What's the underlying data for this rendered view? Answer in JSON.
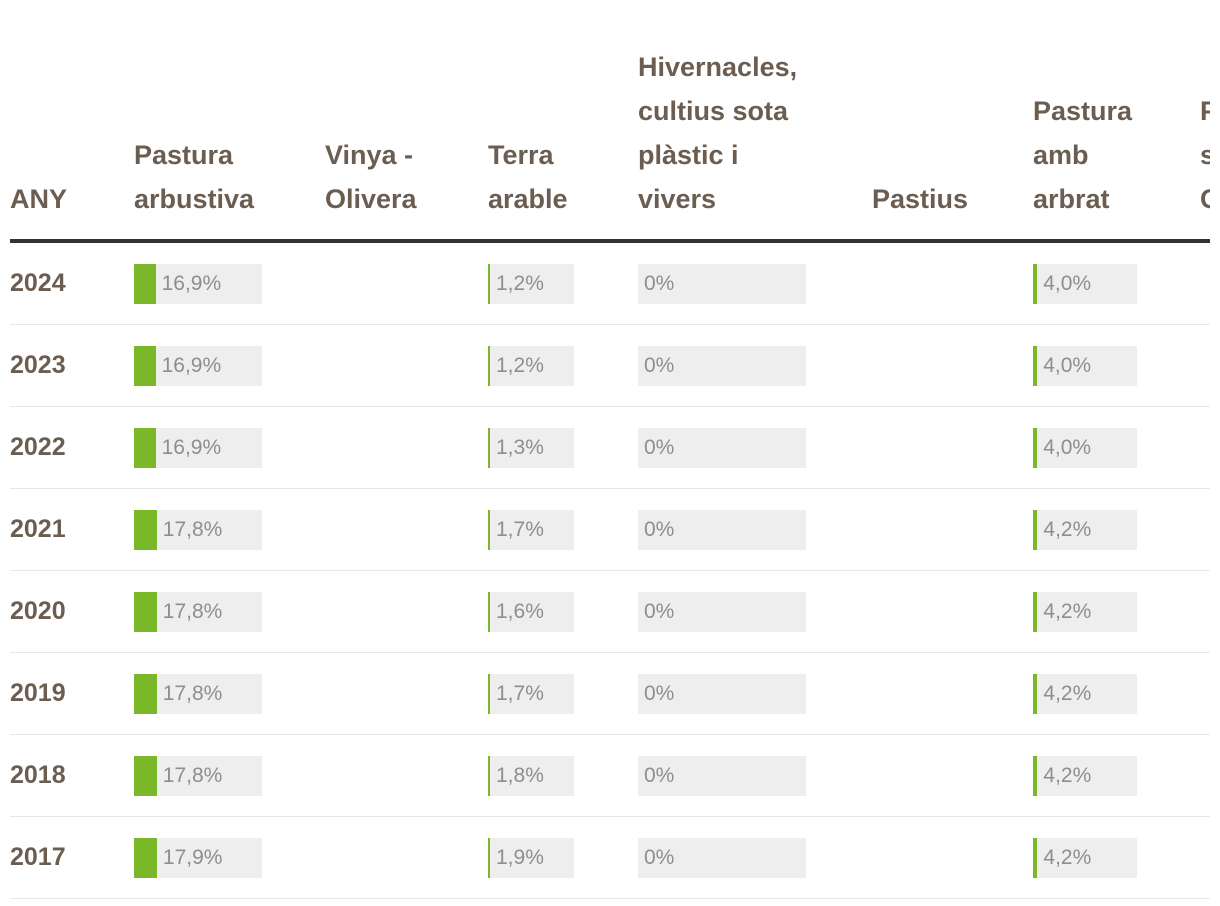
{
  "chart_data": {
    "type": "table",
    "columns": [
      "ANY",
      "Pastura\narbustiva",
      "Vinya -\nOlivera",
      "Terra\narable",
      "Hivernacles,\ncultius sota\nplàstic i\nvivers",
      "Pastius",
      "Pastura\namb\narbrat",
      "P\ns\nC"
    ],
    "series": [
      {
        "column": 1,
        "labels": [
          "16,9%",
          "16,9%",
          "16,9%",
          "17,8%",
          "17,8%",
          "17,8%",
          "17,8%",
          "17,9%"
        ],
        "values": [
          16.9,
          16.9,
          16.9,
          17.8,
          17.8,
          17.8,
          17.8,
          17.9
        ]
      },
      {
        "column": 3,
        "labels": [
          "1,2%",
          "1,2%",
          "1,3%",
          "1,7%",
          "1,6%",
          "1,7%",
          "1,8%",
          "1,9%"
        ],
        "values": [
          1.2,
          1.2,
          1.3,
          1.7,
          1.6,
          1.7,
          1.8,
          1.9
        ]
      },
      {
        "column": 4,
        "labels": [
          "0%",
          "0%",
          "0%",
          "0%",
          "0%",
          "0%",
          "0%",
          "0%"
        ],
        "values": [
          0,
          0,
          0,
          0,
          0,
          0,
          0,
          0
        ]
      },
      {
        "column": 6,
        "labels": [
          "4,0%",
          "4,0%",
          "4,0%",
          "4,2%",
          "4,2%",
          "4,2%",
          "4,2%",
          "4,2%"
        ],
        "values": [
          4.0,
          4.0,
          4.0,
          4.2,
          4.2,
          4.2,
          4.2,
          4.2
        ]
      }
    ],
    "years": [
      "2024",
      "2023",
      "2022",
      "2021",
      "2020",
      "2019",
      "2018",
      "2017"
    ],
    "bar_scale_max": 100,
    "colors": {
      "bar": "#7ab829",
      "track": "#eeeeee",
      "text": "#6b5e51",
      "value_text": "#8e8e8e",
      "header_rule": "#333333",
      "row_rule": "#e6e6e6"
    }
  }
}
